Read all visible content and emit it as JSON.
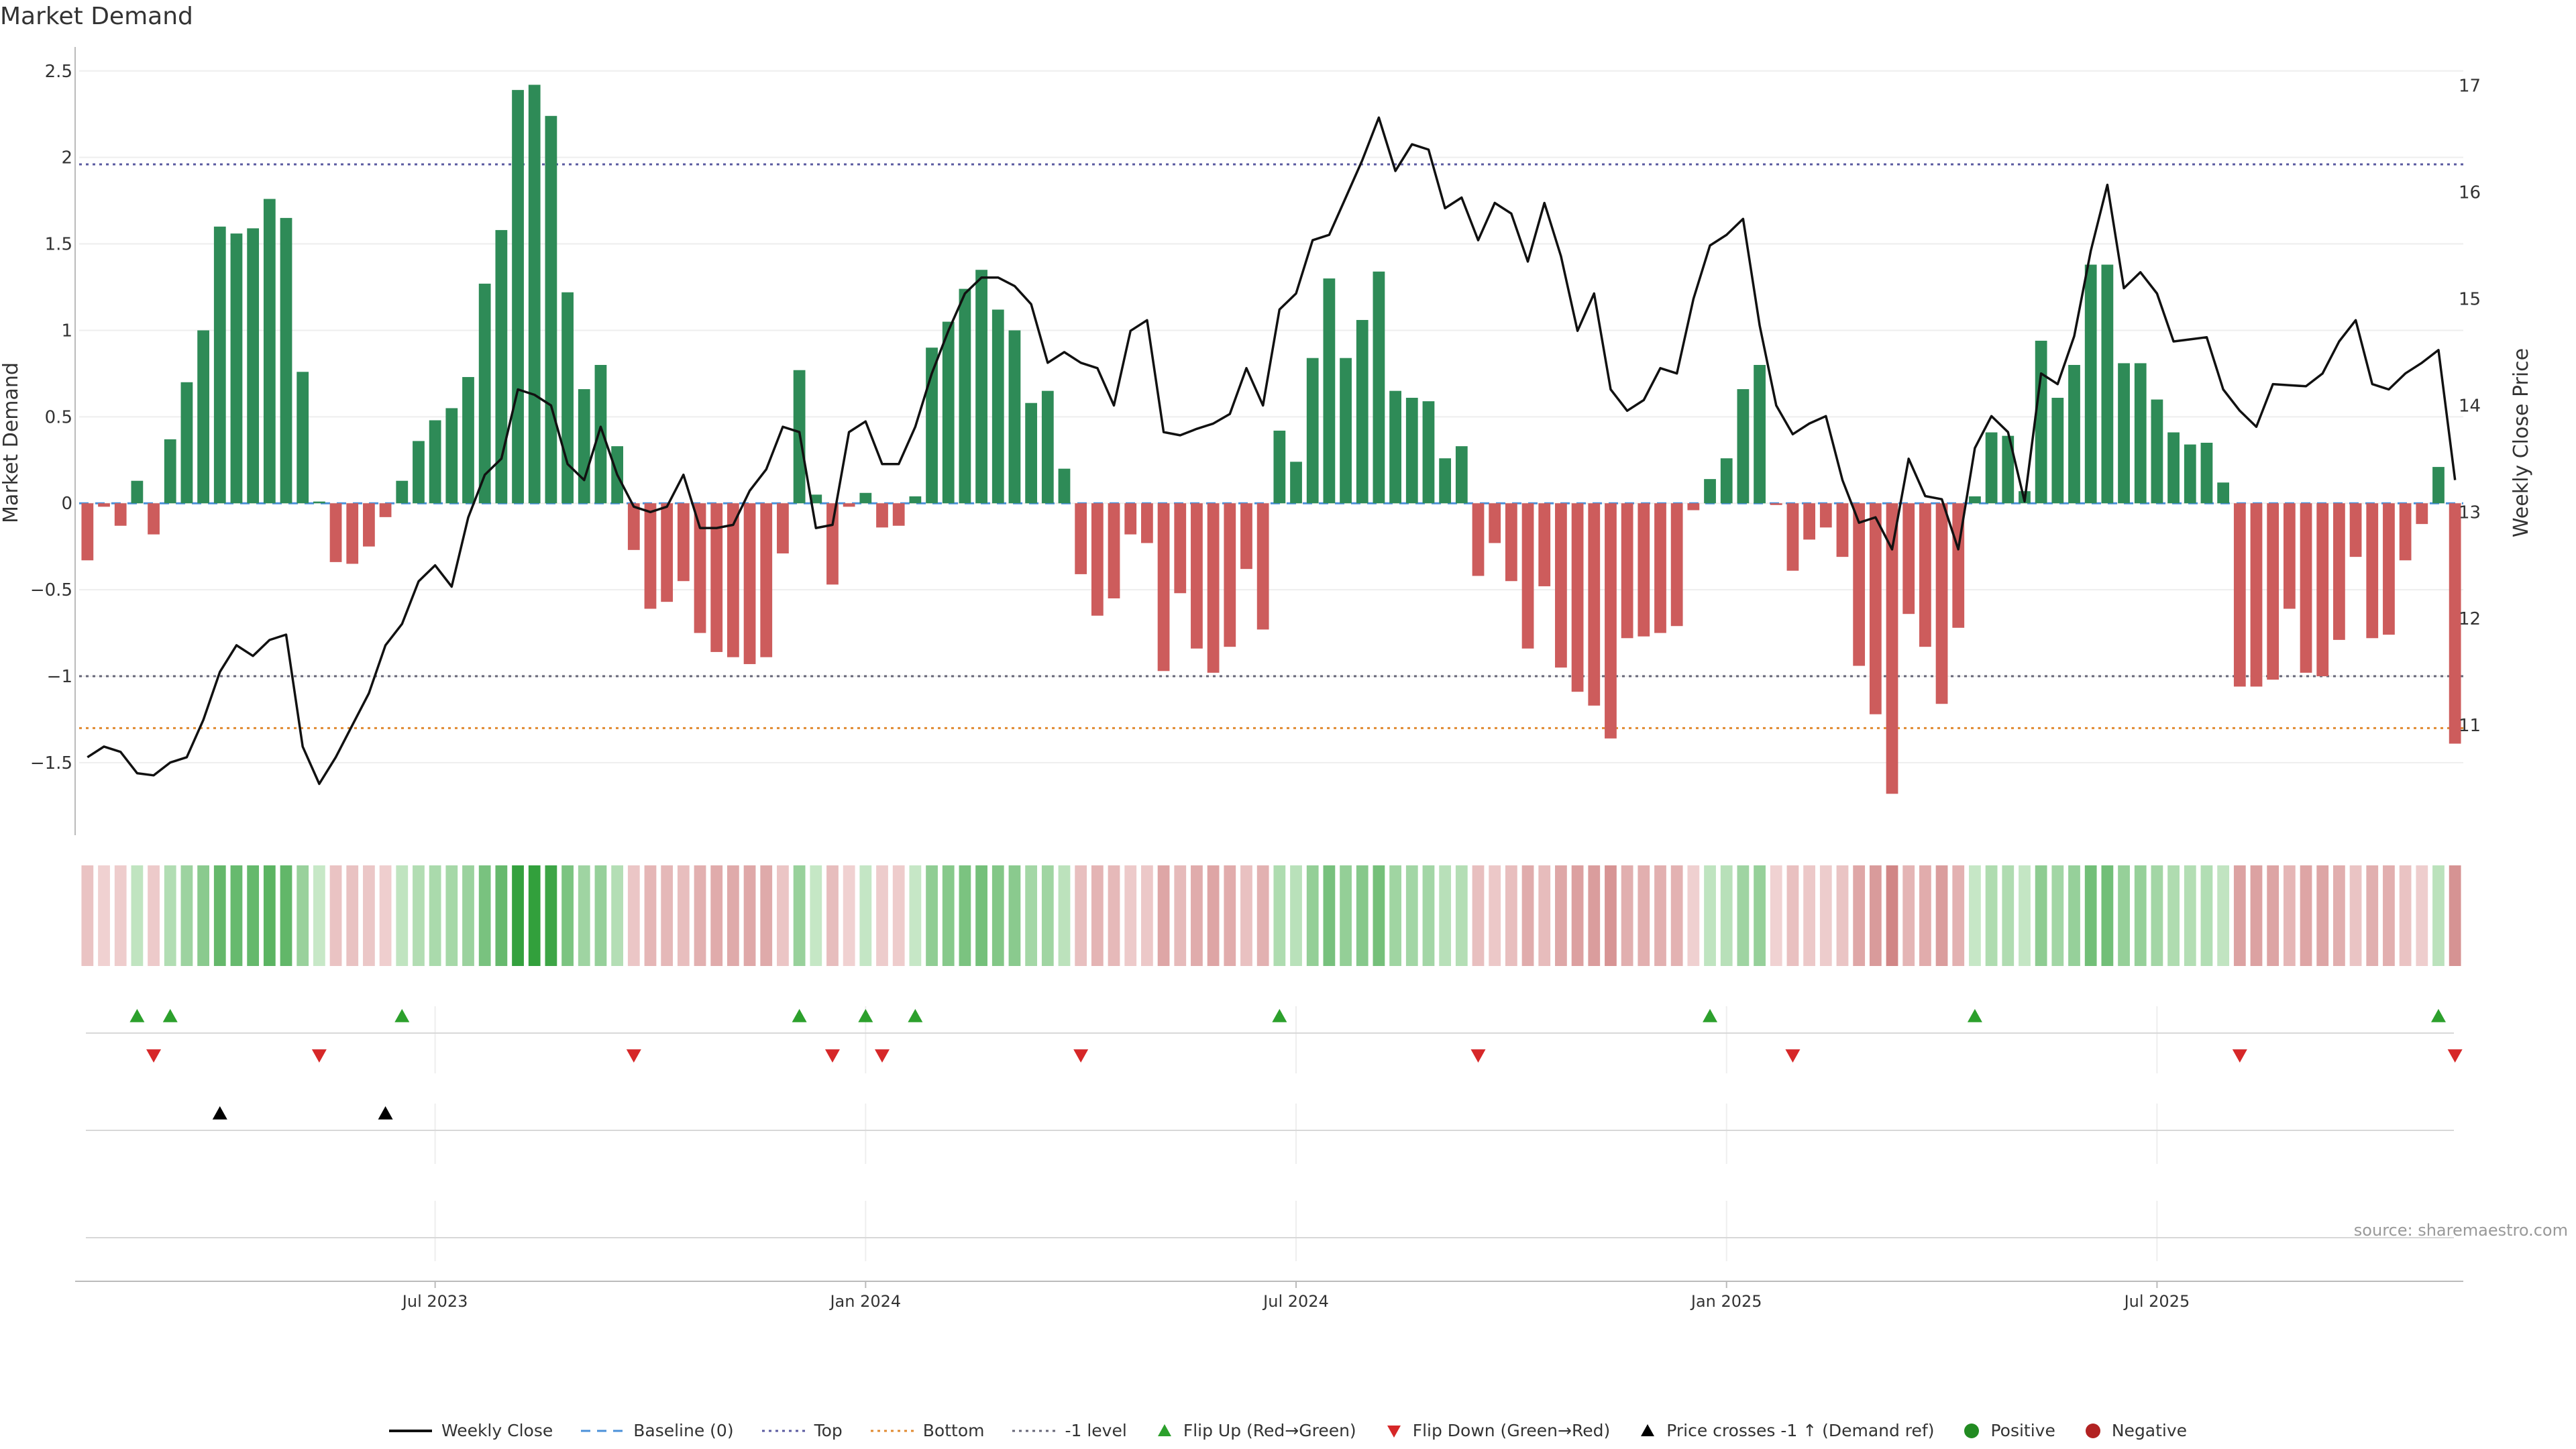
{
  "page": {
    "title": "Market Demand",
    "source": "source: sharemaestro.com"
  },
  "chart_data": {
    "type": "bar",
    "title": "Market Demand",
    "ylabel": "Market Demand",
    "y2label": "Weekly Close Price",
    "ylim": [
      -1.9,
      2.6
    ],
    "y2lim": [
      10.0,
      17.3
    ],
    "yticks": [
      "2.5",
      "2",
      "1.5",
      "1",
      "0.5",
      "0",
      "−0.5",
      "−1",
      "−1.5"
    ],
    "yticks_values": [
      2.5,
      2,
      1.5,
      1,
      0.5,
      0,
      -0.5,
      -1,
      -1.5
    ],
    "y2ticks": [
      "17",
      "16",
      "15",
      "14",
      "13",
      "12",
      "11"
    ],
    "y2ticks_values": [
      17,
      16,
      15,
      14,
      13,
      12,
      11
    ],
    "xtick_labels": [
      "Jul 2023",
      "Jan 2024",
      "Jul 2024",
      "Jan 2025",
      "Jul 2025"
    ],
    "xtick_index": [
      21.5,
      47.5,
      73.5,
      99.5,
      125.5
    ],
    "reference_lines": {
      "top": 1.96,
      "bottom": -1.3,
      "minus_one": -1.0,
      "baseline": 0
    },
    "demand": [
      -0.33,
      -0.02,
      -0.13,
      0.13,
      -0.18,
      0.37,
      0.7,
      1.0,
      1.6,
      1.56,
      1.59,
      1.76,
      1.65,
      0.76,
      0.01,
      -0.34,
      -0.35,
      -0.25,
      -0.08,
      0.13,
      0.36,
      0.48,
      0.55,
      0.73,
      1.27,
      1.58,
      2.39,
      2.42,
      2.24,
      1.22,
      0.66,
      0.8,
      0.33,
      -0.27,
      -0.61,
      -0.57,
      -0.45,
      -0.75,
      -0.86,
      -0.89,
      -0.93,
      -0.89,
      -0.29,
      0.77,
      0.05,
      -0.47,
      -0.02,
      0.06,
      -0.14,
      -0.13,
      0.04,
      0.9,
      1.05,
      1.24,
      1.35,
      1.12,
      1.0,
      0.58,
      0.65,
      0.2,
      -0.41,
      -0.65,
      -0.55,
      -0.18,
      -0.23,
      -0.97,
      -0.52,
      -0.84,
      -0.98,
      -0.83,
      -0.38,
      -0.73,
      0.42,
      0.24,
      0.84,
      1.3,
      0.84,
      1.06,
      1.34,
      0.65,
      0.61,
      0.59,
      0.26,
      0.33,
      -0.42,
      -0.23,
      -0.45,
      -0.84,
      -0.48,
      -0.95,
      -1.09,
      -1.17,
      -1.36,
      -0.78,
      -0.77,
      -0.75,
      -0.71,
      -0.04,
      0.14,
      0.26,
      0.66,
      0.8,
      -0.01,
      -0.39,
      -0.21,
      -0.14,
      -0.31,
      -0.94,
      -1.22,
      -1.68,
      -0.64,
      -0.83,
      -1.16,
      -0.72,
      0.04,
      0.41,
      0.39,
      0.07,
      0.94,
      0.61,
      0.8,
      1.38,
      1.38,
      0.81,
      0.81,
      0.6,
      0.41,
      0.34,
      0.35,
      0.12,
      -1.06,
      -1.06,
      -1.02,
      -0.61,
      -0.98,
      -1.0,
      -0.79,
      -0.31,
      -0.78,
      -0.76,
      -0.33,
      -0.12,
      0.21,
      -1.39
    ],
    "weekly_close": [
      10.7,
      10.8,
      10.75,
      10.55,
      10.53,
      10.65,
      10.7,
      11.05,
      11.5,
      11.75,
      11.65,
      11.8,
      11.85,
      10.8,
      10.45,
      10.7,
      11.0,
      11.3,
      11.75,
      11.95,
      12.35,
      12.5,
      12.3,
      12.95,
      13.35,
      13.5,
      14.15,
      14.1,
      14.0,
      13.45,
      13.3,
      13.8,
      13.35,
      13.05,
      13.0,
      13.05,
      13.35,
      12.85,
      12.85,
      12.88,
      13.2,
      13.4,
      13.8,
      13.75,
      12.85,
      12.88,
      13.75,
      13.85,
      13.45,
      13.45,
      13.8,
      14.3,
      14.7,
      15.05,
      15.2,
      15.2,
      15.12,
      14.95,
      14.4,
      14.5,
      14.4,
      14.35,
      14.0,
      14.7,
      14.8,
      13.75,
      13.72,
      13.78,
      13.83,
      13.92,
      14.35,
      14.0,
      14.9,
      15.05,
      15.55,
      15.6,
      15.95,
      16.3,
      16.7,
      16.2,
      16.45,
      16.4,
      15.85,
      15.95,
      15.55,
      15.9,
      15.8,
      15.35,
      15.9,
      15.4,
      14.7,
      15.05,
      14.15,
      13.95,
      14.05,
      14.35,
      14.3,
      15.0,
      15.5,
      15.6,
      15.75,
      14.75,
      14.0,
      13.73,
      13.83,
      13.9,
      13.3,
      12.9,
      12.95,
      12.65,
      13.5,
      13.15,
      13.12,
      12.65,
      13.6,
      13.9,
      13.75,
      13.1,
      14.3,
      14.2,
      14.65,
      15.45,
      16.07,
      15.1,
      15.25,
      15.05,
      14.6,
      14.62,
      14.64,
      14.15,
      13.95,
      13.8,
      14.2,
      14.19,
      14.18,
      14.3,
      14.6,
      14.8,
      14.2,
      14.15,
      14.3,
      14.4,
      14.52,
      13.3
    ],
    "flip_up": [
      3,
      5,
      19,
      43,
      47,
      50,
      72,
      98,
      114,
      142
    ],
    "flip_down": [
      4,
      14,
      33,
      45,
      48,
      60,
      84,
      103,
      130,
      143
    ],
    "price_cross_minus_one": [
      8,
      18
    ]
  },
  "legend": [
    {
      "label": "Weekly Close",
      "type": "line",
      "color": "#111111"
    },
    {
      "label": "Baseline (0)",
      "type": "dash",
      "color": "#4a90d9"
    },
    {
      "label": "Top",
      "type": "dot",
      "color": "#5a5aa0"
    },
    {
      "label": "Bottom",
      "type": "dot",
      "color": "#e08a30"
    },
    {
      "label": "-1 level",
      "type": "dot",
      "color": "#666677"
    },
    {
      "label": "Flip Up (Red→Green)",
      "type": "tri-up",
      "color": "#2ca02c"
    },
    {
      "label": "Flip Down (Green→Red)",
      "type": "tri-down",
      "color": "#d62728"
    },
    {
      "label": "Price crosses -1 ↑ (Demand ref)",
      "type": "tri-up",
      "color": "#000000"
    },
    {
      "label": "Positive",
      "type": "circle",
      "color": "#228b22"
    },
    {
      "label": "Negative",
      "type": "circle",
      "color": "#b22222"
    }
  ],
  "colors": {
    "positive_bar": "#2e8b57",
    "negative_bar": "#cd5c5c",
    "price_line": "#111111",
    "axis": "#bbbbbb",
    "grid": "#eeeeee"
  }
}
